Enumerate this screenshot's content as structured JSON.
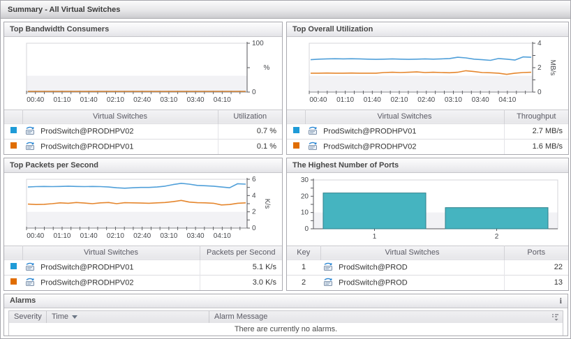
{
  "page": {
    "title": "Summary - All Virtual Switches"
  },
  "panels": {
    "bandwidth": {
      "title": "Top Bandwidth Consumers",
      "table": {
        "col_name": "Virtual Switches",
        "col_value": "Utilization"
      },
      "rows": [
        {
          "color": "#1f9bd7",
          "name": "ProdSwitch@PRODHPV02",
          "value": "0.7 %"
        },
        {
          "color": "#e06d00",
          "name": "ProdSwitch@PRODHPV01",
          "value": "0.1 %"
        }
      ]
    },
    "utilization": {
      "title": "Top Overall Utilization",
      "table": {
        "col_name": "Virtual Switches",
        "col_value": "Throughput"
      },
      "rows": [
        {
          "color": "#1f9bd7",
          "name": "ProdSwitch@PRODHPV01",
          "value": "2.7 MB/s"
        },
        {
          "color": "#e06d00",
          "name": "ProdSwitch@PRODHPV02",
          "value": "1.6 MB/s"
        }
      ]
    },
    "packets": {
      "title": "Top Packets per Second",
      "table": {
        "col_name": "Virtual Switches",
        "col_value": "Packets per Second"
      },
      "rows": [
        {
          "color": "#1f9bd7",
          "name": "ProdSwitch@PRODHPV01",
          "value": "5.1 K/s"
        },
        {
          "color": "#e06d00",
          "name": "ProdSwitch@PRODHPV02",
          "value": "3.0 K/s"
        }
      ]
    },
    "ports": {
      "title": "The Highest Number of Ports",
      "table": {
        "col_key": "Key",
        "col_name": "Virtual Switches",
        "col_value": "Ports"
      },
      "rows": [
        {
          "key": "1",
          "name": "ProdSwitch@PROD",
          "value": "22"
        },
        {
          "key": "2",
          "name": "ProdSwitch@PROD",
          "value": "13"
        }
      ]
    }
  },
  "alarms": {
    "title": "Alarms",
    "info_icon": "i",
    "columns": [
      "Severity",
      "Time",
      "Alarm Message"
    ],
    "empty_message": "There are currently no alarms."
  },
  "chart_data": [
    {
      "id": "chart-bandwidth",
      "type": "line",
      "title": "Top Bandwidth Consumers",
      "ylim": [
        0,
        100
      ],
      "y_ticks": [
        0,
        50,
        100
      ],
      "y_labels": [
        {
          "v": 0,
          "label": "0"
        },
        {
          "v": 100,
          "label": "100"
        }
      ],
      "unit": {
        "text": "%",
        "rotated": false
      },
      "x_start": 30,
      "x_end": 278,
      "x_minor_step": 10,
      "x_labels": [
        {
          "t": 40,
          "label": "00:40"
        },
        {
          "t": 70,
          "label": "01:10"
        },
        {
          "t": 100,
          "label": "01:40"
        },
        {
          "t": 130,
          "label": "02:10"
        },
        {
          "t": 160,
          "label": "02:40"
        },
        {
          "t": 190,
          "label": "03:10"
        },
        {
          "t": 220,
          "label": "03:40"
        },
        {
          "t": 250,
          "label": "04:10"
        }
      ],
      "series": [
        {
          "name": "ProdSwitch@PRODHPV02",
          "color": "#4f9fd9",
          "values": [
            0.7,
            0.7,
            0.7,
            0.7,
            0.7,
            0.7,
            0.7,
            0.7,
            0.7,
            0.7,
            0.7,
            0.7,
            0.7,
            0.7,
            0.7,
            0.7,
            0.7,
            0.7,
            0.7,
            0.7,
            0.7,
            0.7,
            0.7,
            0.7,
            0.7,
            0.7,
            0.7,
            0.7
          ]
        },
        {
          "name": "ProdSwitch@PRODHPV01",
          "color": "#e5862d",
          "values": [
            0.1,
            0.1,
            0.1,
            0.1,
            0.1,
            0.1,
            0.1,
            0.1,
            0.1,
            0.1,
            0.1,
            0.1,
            0.1,
            0.1,
            0.1,
            0.1,
            0.1,
            0.1,
            0.1,
            0.1,
            0.1,
            0.1,
            0.1,
            0.1,
            0.1,
            0.1,
            0.1,
            0.1
          ]
        }
      ]
    },
    {
      "id": "chart-utilization",
      "type": "line",
      "title": "Top Overall Utilization",
      "ylim": [
        0,
        4
      ],
      "y_ticks": [
        0,
        1,
        2,
        3,
        4
      ],
      "y_labels": [
        {
          "v": 0,
          "label": "0"
        },
        {
          "v": 2,
          "label": "2"
        },
        {
          "v": 4,
          "label": "4"
        }
      ],
      "unit": {
        "text": "MB/s",
        "rotated": true
      },
      "x_start": 30,
      "x_end": 278,
      "x_minor_step": 10,
      "x_labels": [
        {
          "t": 40,
          "label": "00:40"
        },
        {
          "t": 70,
          "label": "01:10"
        },
        {
          "t": 100,
          "label": "01:40"
        },
        {
          "t": 130,
          "label": "02:10"
        },
        {
          "t": 160,
          "label": "02:40"
        },
        {
          "t": 190,
          "label": "03:10"
        },
        {
          "t": 220,
          "label": "03:40"
        },
        {
          "t": 250,
          "label": "04:10"
        }
      ],
      "series": [
        {
          "name": "ProdSwitch@PRODHPV01",
          "color": "#4f9fd9",
          "values": [
            2.65,
            2.7,
            2.72,
            2.73,
            2.72,
            2.73,
            2.72,
            2.7,
            2.68,
            2.7,
            2.72,
            2.7,
            2.68,
            2.7,
            2.72,
            2.7,
            2.72,
            2.75,
            2.85,
            2.8,
            2.7,
            2.65,
            2.6,
            2.75,
            2.7,
            2.62,
            2.88,
            2.85
          ]
        },
        {
          "name": "ProdSwitch@PRODHPV02",
          "color": "#e5862d",
          "values": [
            1.55,
            1.55,
            1.56,
            1.55,
            1.55,
            1.56,
            1.55,
            1.55,
            1.55,
            1.6,
            1.62,
            1.6,
            1.62,
            1.65,
            1.6,
            1.62,
            1.6,
            1.58,
            1.62,
            1.75,
            1.68,
            1.6,
            1.58,
            1.55,
            1.45,
            1.55,
            1.6,
            1.62
          ]
        }
      ]
    },
    {
      "id": "chart-packets",
      "type": "line",
      "title": "Top Packets per Second",
      "ylim": [
        0,
        6
      ],
      "y_ticks": [
        0,
        1,
        2,
        3,
        4,
        5,
        6
      ],
      "y_labels": [
        {
          "v": 0,
          "label": "0"
        },
        {
          "v": 2,
          "label": "2"
        },
        {
          "v": 4,
          "label": "4"
        },
        {
          "v": 6,
          "label": "6"
        }
      ],
      "unit": {
        "text": "K/s",
        "rotated": true
      },
      "x_start": 30,
      "x_end": 278,
      "x_minor_step": 10,
      "x_labels": [
        {
          "t": 40,
          "label": "00:40"
        },
        {
          "t": 70,
          "label": "01:10"
        },
        {
          "t": 100,
          "label": "01:40"
        },
        {
          "t": 130,
          "label": "02:10"
        },
        {
          "t": 160,
          "label": "02:40"
        },
        {
          "t": 190,
          "label": "03:10"
        },
        {
          "t": 220,
          "label": "03:40"
        },
        {
          "t": 250,
          "label": "04:10"
        }
      ],
      "series": [
        {
          "name": "ProdSwitch@PRODHPV01",
          "color": "#4f9fd9",
          "values": [
            5.05,
            5.1,
            5.12,
            5.1,
            5.12,
            5.15,
            5.12,
            5.1,
            5.12,
            5.1,
            5.05,
            4.95,
            4.9,
            4.95,
            5.0,
            5.0,
            5.05,
            5.15,
            5.35,
            5.5,
            5.4,
            5.25,
            5.2,
            5.15,
            5.05,
            4.95,
            5.45,
            5.4
          ]
        },
        {
          "name": "ProdSwitch@PRODHPV02",
          "color": "#e5862d",
          "values": [
            2.95,
            2.9,
            2.92,
            3.0,
            3.1,
            3.05,
            3.15,
            3.08,
            3.0,
            3.1,
            3.15,
            3.0,
            3.12,
            3.1,
            3.08,
            3.05,
            3.1,
            3.15,
            3.25,
            3.4,
            3.2,
            3.12,
            3.1,
            3.05,
            2.85,
            2.9,
            3.05,
            3.1
          ]
        }
      ]
    },
    {
      "id": "chart-ports",
      "type": "bar",
      "title": "The Highest Number of Ports",
      "categories": [
        "1",
        "2"
      ],
      "values": [
        22,
        13
      ],
      "ylim": [
        0,
        30
      ],
      "y_ticks": [
        0,
        5,
        10,
        15,
        20,
        25,
        30
      ],
      "y_labels": [
        {
          "v": 0,
          "label": "0"
        },
        {
          "v": 10,
          "label": "10"
        },
        {
          "v": 20,
          "label": "20"
        },
        {
          "v": 30,
          "label": "30"
        }
      ],
      "bar_color": "#45b4c0",
      "bar_border": "#2e7f8b"
    }
  ]
}
